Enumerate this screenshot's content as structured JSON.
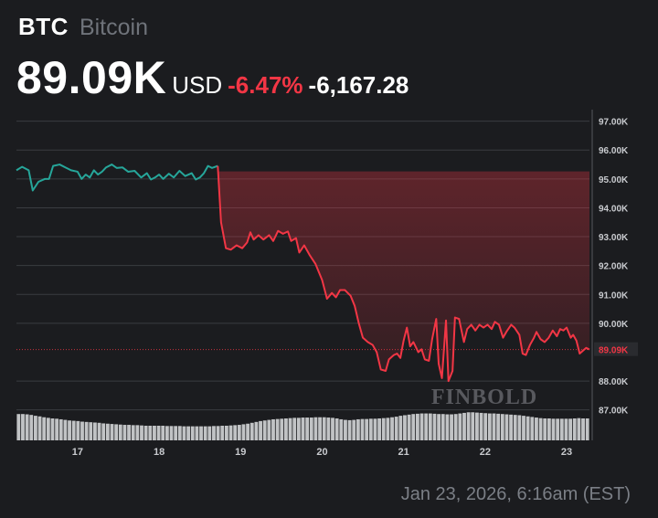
{
  "header": {
    "ticker": "BTC",
    "asset_name": "Bitcoin",
    "price": "89.09K",
    "currency": "USD",
    "change_pct": "-6.47%",
    "change_abs": "-6,167.28"
  },
  "timestamp": "Jan 23, 2026, 6:16am (EST)",
  "watermark": "FINBOLD",
  "colors": {
    "background": "#1b1c1f",
    "up": "#26a69a",
    "down": "#f23645",
    "grid": "#3a3c41",
    "volume": "#cfd1d4",
    "text_muted": "#7b7f86"
  },
  "chart_data": {
    "type": "line",
    "title": "",
    "xlabel": "",
    "ylabel": "",
    "x_ticks": [
      "17",
      "18",
      "19",
      "20",
      "21",
      "22",
      "23"
    ],
    "y_ticks": [
      "97.00K",
      "96.00K",
      "95.00K",
      "94.00K",
      "93.00K",
      "92.00K",
      "91.00K",
      "90.00K",
      "89.09K",
      "88.00K",
      "87.00K"
    ],
    "ylim": [
      86.8,
      97.4
    ],
    "xlim": [
      16.25,
      23.28
    ],
    "grid": true,
    "current_price_label": "89.09K",
    "current_price": 89.09,
    "reference_price": 95.26,
    "series": [
      {
        "values": [
          [
            16.25,
            95.3
          ],
          [
            16.32,
            95.42
          ],
          [
            16.4,
            95.3
          ],
          [
            16.45,
            94.6
          ],
          [
            16.52,
            94.9
          ],
          [
            16.6,
            95.0
          ],
          [
            16.65,
            95.0
          ],
          [
            16.7,
            95.45
          ],
          [
            16.78,
            95.5
          ],
          [
            16.85,
            95.4
          ],
          [
            16.92,
            95.3
          ],
          [
            17.0,
            95.25
          ],
          [
            17.05,
            95.0
          ],
          [
            17.1,
            95.15
          ],
          [
            17.15,
            95.05
          ],
          [
            17.2,
            95.3
          ],
          [
            17.25,
            95.15
          ],
          [
            17.3,
            95.25
          ],
          [
            17.35,
            95.4
          ],
          [
            17.42,
            95.5
          ],
          [
            17.48,
            95.38
          ],
          [
            17.55,
            95.4
          ],
          [
            17.62,
            95.25
          ],
          [
            17.7,
            95.28
          ],
          [
            17.78,
            95.05
          ],
          [
            17.85,
            95.2
          ],
          [
            17.9,
            94.98
          ],
          [
            17.95,
            95.05
          ],
          [
            18.0,
            95.15
          ],
          [
            18.05,
            95.0
          ],
          [
            18.12,
            95.18
          ],
          [
            18.18,
            95.05
          ],
          [
            18.25,
            95.28
          ],
          [
            18.32,
            95.1
          ],
          [
            18.4,
            95.2
          ],
          [
            18.45,
            94.98
          ],
          [
            18.5,
            95.05
          ],
          [
            18.55,
            95.2
          ],
          [
            18.6,
            95.45
          ],
          [
            18.65,
            95.38
          ],
          [
            18.72,
            95.45
          ],
          [
            18.76,
            93.5
          ],
          [
            18.82,
            92.6
          ],
          [
            18.88,
            92.55
          ],
          [
            18.95,
            92.7
          ],
          [
            19.02,
            92.6
          ],
          [
            19.08,
            92.8
          ],
          [
            19.12,
            93.15
          ],
          [
            19.16,
            92.9
          ],
          [
            19.22,
            93.05
          ],
          [
            19.28,
            92.9
          ],
          [
            19.35,
            93.05
          ],
          [
            19.4,
            92.85
          ],
          [
            19.46,
            93.2
          ],
          [
            19.52,
            93.1
          ],
          [
            19.58,
            93.18
          ],
          [
            19.62,
            92.85
          ],
          [
            19.68,
            92.95
          ],
          [
            19.72,
            92.45
          ],
          [
            19.78,
            92.7
          ],
          [
            19.85,
            92.35
          ],
          [
            19.92,
            92.05
          ],
          [
            20.0,
            91.5
          ],
          [
            20.06,
            90.85
          ],
          [
            20.12,
            91.05
          ],
          [
            20.17,
            90.9
          ],
          [
            20.22,
            91.15
          ],
          [
            20.28,
            91.15
          ],
          [
            20.35,
            90.95
          ],
          [
            20.4,
            90.6
          ],
          [
            20.45,
            90.0
          ],
          [
            20.5,
            89.5
          ],
          [
            20.56,
            89.35
          ],
          [
            20.62,
            89.25
          ],
          [
            20.67,
            89.0
          ],
          [
            20.72,
            88.4
          ],
          [
            20.78,
            88.35
          ],
          [
            20.82,
            88.75
          ],
          [
            20.88,
            88.9
          ],
          [
            20.92,
            88.95
          ],
          [
            20.96,
            88.8
          ],
          [
            21.0,
            89.4
          ],
          [
            21.04,
            89.85
          ],
          [
            21.08,
            89.2
          ],
          [
            21.12,
            89.35
          ],
          [
            21.18,
            89.0
          ],
          [
            21.22,
            89.1
          ],
          [
            21.26,
            88.75
          ],
          [
            21.31,
            88.7
          ],
          [
            21.35,
            89.45
          ],
          [
            21.4,
            90.15
          ],
          [
            21.43,
            88.6
          ],
          [
            21.47,
            88.1
          ],
          [
            21.52,
            90.1
          ],
          [
            21.55,
            88.0
          ],
          [
            21.6,
            88.35
          ],
          [
            21.63,
            90.2
          ],
          [
            21.68,
            90.15
          ],
          [
            21.74,
            89.35
          ],
          [
            21.78,
            89.8
          ],
          [
            21.83,
            89.95
          ],
          [
            21.88,
            89.75
          ],
          [
            21.93,
            89.95
          ],
          [
            21.98,
            89.85
          ],
          [
            22.03,
            89.95
          ],
          [
            22.08,
            89.8
          ],
          [
            22.12,
            90.05
          ],
          [
            22.17,
            89.95
          ],
          [
            22.22,
            89.5
          ],
          [
            22.26,
            89.7
          ],
          [
            22.32,
            89.95
          ],
          [
            22.36,
            89.85
          ],
          [
            22.42,
            89.6
          ],
          [
            22.46,
            88.95
          ],
          [
            22.5,
            88.9
          ],
          [
            22.55,
            89.25
          ],
          [
            22.6,
            89.5
          ],
          [
            22.63,
            89.7
          ],
          [
            22.68,
            89.45
          ],
          [
            22.73,
            89.35
          ],
          [
            22.78,
            89.5
          ],
          [
            22.83,
            89.75
          ],
          [
            22.88,
            89.55
          ],
          [
            22.92,
            89.8
          ],
          [
            22.96,
            89.75
          ],
          [
            23.0,
            89.85
          ],
          [
            23.05,
            89.5
          ],
          [
            23.08,
            89.6
          ],
          [
            23.12,
            89.4
          ],
          [
            23.16,
            88.95
          ],
          [
            23.2,
            89.05
          ],
          [
            23.24,
            89.15
          ],
          [
            23.28,
            89.09
          ]
        ]
      }
    ],
    "volume": [
      0.9,
      0.9,
      0.89,
      0.87,
      0.84,
      0.82,
      0.79,
      0.77,
      0.75,
      0.74,
      0.72,
      0.7,
      0.68,
      0.67,
      0.66,
      0.64,
      0.63,
      0.62,
      0.61,
      0.6,
      0.58,
      0.57,
      0.56,
      0.55,
      0.54,
      0.53,
      0.53,
      0.52,
      0.52,
      0.51,
      0.5,
      0.5,
      0.5,
      0.5,
      0.5,
      0.49,
      0.49,
      0.49,
      0.49,
      0.48,
      0.48,
      0.48,
      0.48,
      0.48,
      0.48,
      0.48,
      0.49,
      0.49,
      0.5,
      0.5,
      0.51,
      0.52,
      0.53,
      0.55,
      0.57,
      0.6,
      0.63,
      0.66,
      0.68,
      0.7,
      0.72,
      0.73,
      0.74,
      0.75,
      0.76,
      0.77,
      0.77,
      0.78,
      0.78,
      0.78,
      0.79,
      0.79,
      0.79,
      0.78,
      0.77,
      0.75,
      0.72,
      0.7,
      0.69,
      0.7,
      0.72,
      0.73,
      0.73,
      0.74,
      0.74,
      0.75,
      0.76,
      0.77,
      0.79,
      0.81,
      0.84,
      0.86,
      0.88,
      0.9,
      0.91,
      0.92,
      0.92,
      0.92,
      0.91,
      0.9,
      0.9,
      0.89,
      0.89,
      0.9,
      0.92,
      0.94,
      0.96,
      0.96,
      0.95,
      0.94,
      0.93,
      0.92,
      0.92,
      0.91,
      0.9,
      0.89,
      0.88,
      0.87,
      0.86,
      0.84,
      0.82,
      0.8,
      0.78,
      0.76,
      0.75,
      0.75,
      0.74,
      0.74,
      0.74,
      0.74,
      0.74,
      0.75,
      0.76,
      0.75,
      0.75
    ]
  }
}
